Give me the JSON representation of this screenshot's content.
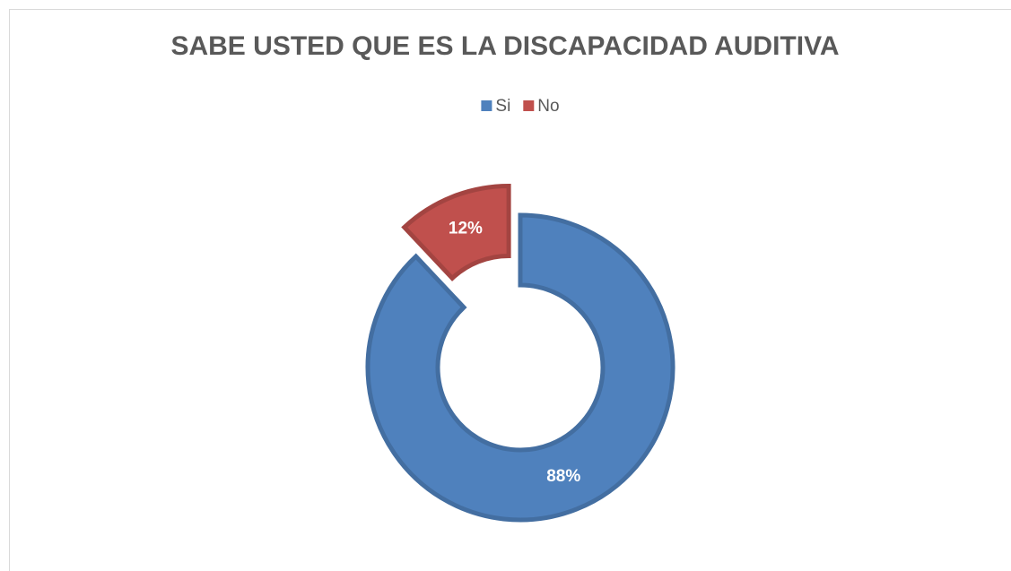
{
  "chart_data": {
    "type": "donut",
    "title": "SABE USTED QUE ES LA DISCAPACIDAD AUDITIVA",
    "categories": [
      "Si",
      "No"
    ],
    "values": [
      88,
      12
    ],
    "value_labels": [
      "88%",
      "12%"
    ],
    "colors": [
      "#4f81bd",
      "#c0504d"
    ],
    "legend": "top"
  }
}
